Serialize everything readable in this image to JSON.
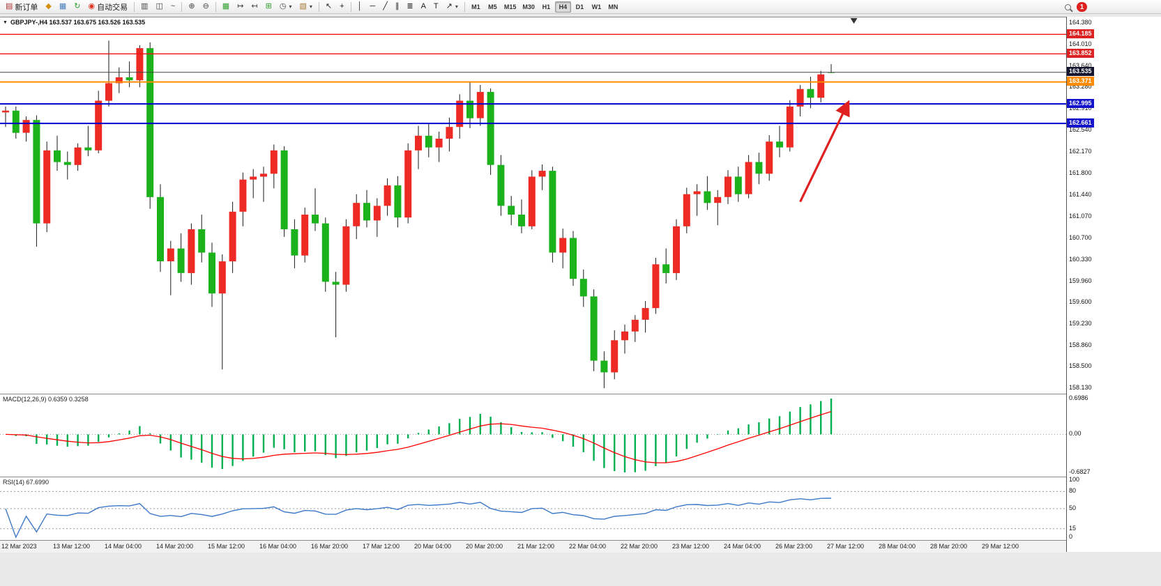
{
  "toolbar": {
    "buttons": [
      {
        "name": "new-order",
        "glyph": "▤",
        "label": "新订单",
        "color": "#b03030"
      },
      {
        "name": "market-watch",
        "glyph": "◆",
        "color": "#d49010"
      },
      {
        "name": "data-window",
        "glyph": "▦",
        "color": "#4a7ebb"
      },
      {
        "name": "navigator",
        "glyph": "↻",
        "color": "#2e9e2e"
      },
      {
        "name": "auto-trading",
        "glyph": "◉",
        "label": "自动交易",
        "color": "#dd3322"
      },
      {
        "sep": true
      },
      {
        "name": "bar-chart",
        "glyph": "▥",
        "color": "#444444"
      },
      {
        "name": "candlestick-chart",
        "glyph": "◫",
        "color": "#444444"
      },
      {
        "name": "line-chart",
        "glyph": "~",
        "color": "#444444"
      },
      {
        "sep": true
      },
      {
        "name": "zoom-in",
        "glyph": "⊕",
        "color": "#444444"
      },
      {
        "name": "zoom-out",
        "glyph": "⊖",
        "color": "#444444"
      },
      {
        "sep": true
      },
      {
        "name": "tile-windows",
        "glyph": "▦",
        "color": "#2e9e2e"
      },
      {
        "name": "auto-scroll",
        "glyph": "↦",
        "color": "#444444"
      },
      {
        "name": "chart-shift",
        "glyph": "↤",
        "color": "#444444"
      },
      {
        "name": "indicators-list",
        "glyph": "⊞",
        "color": "#2e9e2e"
      },
      {
        "name": "periods",
        "glyph": "◷",
        "color": "#444444",
        "dropdown": true
      },
      {
        "name": "templates",
        "glyph": "▧",
        "color": "#a87832",
        "dropdown": true
      },
      {
        "sep": true
      },
      {
        "name": "cursor",
        "glyph": "↖",
        "color": "#222222"
      },
      {
        "name": "crosshair",
        "glyph": "+",
        "color": "#222222"
      },
      {
        "sep": true
      },
      {
        "name": "vertical-line",
        "glyph": "│",
        "color": "#222222"
      },
      {
        "name": "horizontal-line",
        "glyph": "─",
        "color": "#222222"
      },
      {
        "name": "trendline",
        "glyph": "╱",
        "color": "#222222"
      },
      {
        "name": "equidistant-channel",
        "glyph": "∥",
        "color": "#222222"
      },
      {
        "name": "fibonacci",
        "glyph": "≣",
        "color": "#222222"
      },
      {
        "name": "text",
        "glyph": "A",
        "color": "#222222"
      },
      {
        "name": "text-label",
        "glyph": "T",
        "color": "#222222"
      },
      {
        "name": "arrows-tool",
        "glyph": "↗",
        "color": "#222222",
        "dropdown": true
      },
      {
        "sep": true
      }
    ],
    "timeframes": {
      "items": [
        "M1",
        "M5",
        "M15",
        "M30",
        "H1",
        "H4",
        "D1",
        "W1",
        "MN"
      ],
      "active": "H4"
    },
    "badge_count": "1"
  },
  "chart_data": [
    {
      "type": "candlestick",
      "symbol": "GBPJPY-",
      "timeframe": "H4",
      "header_text": "GBPJPY-,H4 163.537 163.675 163.526 163.535",
      "collapse_icon": "▼",
      "ohlc_current": {
        "open": 163.537,
        "high": 163.675,
        "low": 163.526,
        "close": 163.535
      },
      "ylim": [
        158.13,
        164.38
      ],
      "y_ticks": [
        "164.380",
        "164.010",
        "163.640",
        "163.280",
        "162.910",
        "162.540",
        "162.170",
        "161.800",
        "161.440",
        "161.070",
        "160.700",
        "160.330",
        "159.960",
        "159.600",
        "159.230",
        "158.860",
        "158.500",
        "158.130"
      ],
      "time_labels": [
        "12 Mar 2023",
        "13 Mar 12:00",
        "14 Mar 04:00",
        "14 Mar 20:00",
        "15 Mar 12:00",
        "16 Mar 04:00",
        "16 Mar 20:00",
        "17 Mar 12:00",
        "20 Mar 04:00",
        "20 Mar 20:00",
        "21 Mar 12:00",
        "22 Mar 04:00",
        "22 Mar 20:00",
        "23 Mar 12:00",
        "24 Mar 04:00",
        "26 Mar 23:00",
        "27 Mar 12:00",
        "28 Mar 04:00",
        "28 Mar 20:00",
        "29 Mar 12:00"
      ],
      "up_color": "#ed2a24",
      "down_color": "#1cb21c",
      "wick_color": "#1a1a1a",
      "hlines": [
        {
          "price": 164.185,
          "label": "164.185",
          "color": "#ee1111",
          "width": 1.4,
          "badge_bg": "#dd2222"
        },
        {
          "price": 163.852,
          "label": "163.852",
          "color": "#ee1111",
          "width": 1.4,
          "badge_bg": "#dd2222"
        },
        {
          "price": 163.535,
          "label": "163.535",
          "color": "#444444",
          "width": 1,
          "badge_bg": "#14142e",
          "current": true
        },
        {
          "price": 163.371,
          "label": "163.371",
          "color": "#ff8c00",
          "width": 2,
          "badge_bg": "#ff8c00"
        },
        {
          "price": 162.995,
          "label": "162.995",
          "color": "#0000d0",
          "width": 2,
          "badge_bg": "#1414cc"
        },
        {
          "price": 162.661,
          "label": "162.661",
          "color": "#0000d0",
          "width": 2,
          "badge_bg": "#1414cc"
        }
      ],
      "arrow": {
        "from_bar": 77.0,
        "from_price": 161.32,
        "to_bar": 81.6,
        "to_price": 163.0,
        "color": "#e02020"
      },
      "shift_marker_bar": 82.2,
      "candles": [
        [
          162.85,
          162.95,
          162.6,
          162.88
        ],
        [
          162.88,
          162.95,
          162.4,
          162.5
        ],
        [
          162.5,
          162.78,
          162.35,
          162.72
        ],
        [
          162.72,
          162.8,
          160.55,
          160.95
        ],
        [
          160.95,
          162.35,
          160.8,
          162.2
        ],
        [
          162.2,
          162.45,
          161.85,
          162.0
        ],
        [
          162.0,
          162.18,
          161.7,
          161.95
        ],
        [
          161.95,
          162.32,
          161.85,
          162.25
        ],
        [
          162.25,
          162.62,
          162.1,
          162.2
        ],
        [
          162.2,
          163.22,
          162.15,
          163.05
        ],
        [
          163.05,
          164.08,
          162.95,
          163.35
        ],
        [
          163.35,
          163.62,
          163.18,
          163.45
        ],
        [
          163.45,
          163.72,
          163.28,
          163.4
        ],
        [
          163.4,
          164.0,
          163.28,
          163.95
        ],
        [
          163.95,
          164.05,
          161.2,
          161.4
        ],
        [
          161.4,
          161.62,
          160.12,
          160.3
        ],
        [
          160.3,
          160.65,
          159.72,
          160.52
        ],
        [
          160.52,
          160.78,
          159.95,
          160.1
        ],
        [
          160.1,
          160.95,
          159.9,
          160.85
        ],
        [
          160.85,
          161.1,
          160.28,
          160.45
        ],
        [
          160.45,
          160.62,
          159.52,
          159.75
        ],
        [
          159.75,
          160.42,
          158.45,
          160.3
        ],
        [
          160.3,
          161.32,
          160.1,
          161.15
        ],
        [
          161.15,
          161.82,
          160.9,
          161.7
        ],
        [
          161.7,
          161.88,
          161.38,
          161.75
        ],
        [
          161.75,
          161.92,
          161.32,
          161.8
        ],
        [
          161.8,
          162.3,
          161.55,
          162.2
        ],
        [
          162.2,
          162.27,
          160.72,
          160.85
        ],
        [
          160.85,
          161.02,
          160.18,
          160.4
        ],
        [
          160.4,
          161.22,
          160.28,
          161.1
        ],
        [
          161.1,
          161.55,
          160.82,
          160.95
        ],
        [
          160.95,
          161.05,
          159.78,
          159.95
        ],
        [
          159.95,
          160.12,
          159.0,
          159.9
        ],
        [
          159.9,
          161.02,
          159.78,
          160.9
        ],
        [
          160.9,
          161.45,
          160.68,
          161.3
        ],
        [
          161.3,
          161.52,
          160.88,
          161.0
        ],
        [
          161.0,
          161.38,
          160.72,
          161.25
        ],
        [
          161.25,
          161.72,
          161.08,
          161.6
        ],
        [
          161.6,
          161.76,
          160.88,
          161.05
        ],
        [
          161.05,
          162.32,
          160.95,
          162.2
        ],
        [
          162.2,
          162.62,
          161.88,
          162.45
        ],
        [
          162.45,
          162.66,
          162.08,
          162.25
        ],
        [
          162.25,
          162.52,
          162.0,
          162.4
        ],
        [
          162.4,
          162.76,
          162.18,
          162.6
        ],
        [
          162.6,
          163.16,
          162.4,
          163.05
        ],
        [
          163.05,
          163.37,
          162.58,
          162.75
        ],
        [
          162.75,
          163.32,
          162.62,
          163.2
        ],
        [
          163.2,
          163.26,
          161.78,
          161.95
        ],
        [
          161.95,
          162.12,
          161.08,
          161.25
        ],
        [
          161.25,
          161.42,
          160.92,
          161.1
        ],
        [
          161.1,
          161.36,
          160.78,
          160.9
        ],
        [
          160.9,
          161.86,
          160.85,
          161.75
        ],
        [
          161.75,
          161.96,
          161.52,
          161.85
        ],
        [
          161.85,
          161.92,
          160.28,
          160.45
        ],
        [
          160.45,
          160.86,
          160.18,
          160.7
        ],
        [
          160.7,
          160.82,
          159.88,
          160.0
        ],
        [
          160.0,
          160.16,
          159.52,
          159.7
        ],
        [
          159.7,
          159.82,
          158.42,
          158.6
        ],
        [
          158.6,
          158.76,
          158.13,
          158.4
        ],
        [
          158.4,
          159.12,
          158.28,
          158.95
        ],
        [
          158.95,
          159.22,
          158.72,
          159.1
        ],
        [
          159.1,
          159.38,
          158.92,
          159.3
        ],
        [
          159.3,
          159.62,
          159.08,
          159.5
        ],
        [
          159.5,
          160.36,
          159.4,
          160.25
        ],
        [
          160.25,
          160.52,
          159.92,
          160.1
        ],
        [
          160.1,
          161.02,
          159.98,
          160.9
        ],
        [
          160.9,
          161.56,
          160.78,
          161.45
        ],
        [
          161.45,
          161.62,
          161.08,
          161.5
        ],
        [
          161.5,
          161.76,
          161.18,
          161.3
        ],
        [
          161.3,
          161.52,
          160.92,
          161.4
        ],
        [
          161.4,
          161.86,
          161.28,
          161.75
        ],
        [
          161.75,
          161.92,
          161.32,
          161.45
        ],
        [
          161.45,
          162.12,
          161.38,
          162.0
        ],
        [
          162.0,
          162.16,
          161.62,
          161.8
        ],
        [
          161.8,
          162.46,
          161.68,
          162.35
        ],
        [
          162.35,
          162.62,
          162.08,
          162.25
        ],
        [
          162.25,
          163.06,
          162.18,
          162.95
        ],
        [
          162.95,
          163.32,
          162.78,
          163.25
        ],
        [
          163.25,
          163.46,
          162.92,
          163.1
        ],
        [
          163.1,
          163.56,
          163.02,
          163.5
        ],
        [
          163.537,
          163.675,
          163.526,
          163.535
        ]
      ]
    },
    {
      "type": "macd",
      "header": "MACD(12,26,9) 0.6359 0.3258",
      "params": [
        12,
        26,
        9
      ],
      "current_values": [
        0.6359,
        0.3258
      ],
      "y_tick_labels": [
        "0.6986",
        "0.00",
        "-0.6827"
      ],
      "histogram_color": "#00b050",
      "signal_color": "#ff0000"
    },
    {
      "type": "rsi",
      "header": "RSI(14) 67.6990",
      "period": 14,
      "current_value": 67.699,
      "levels": [
        80,
        50,
        15
      ],
      "y_tick_labels": [
        "100",
        "80",
        "50",
        "15",
        "0"
      ],
      "line_color": "#3c78c8",
      "range": [
        0,
        100
      ]
    }
  ]
}
